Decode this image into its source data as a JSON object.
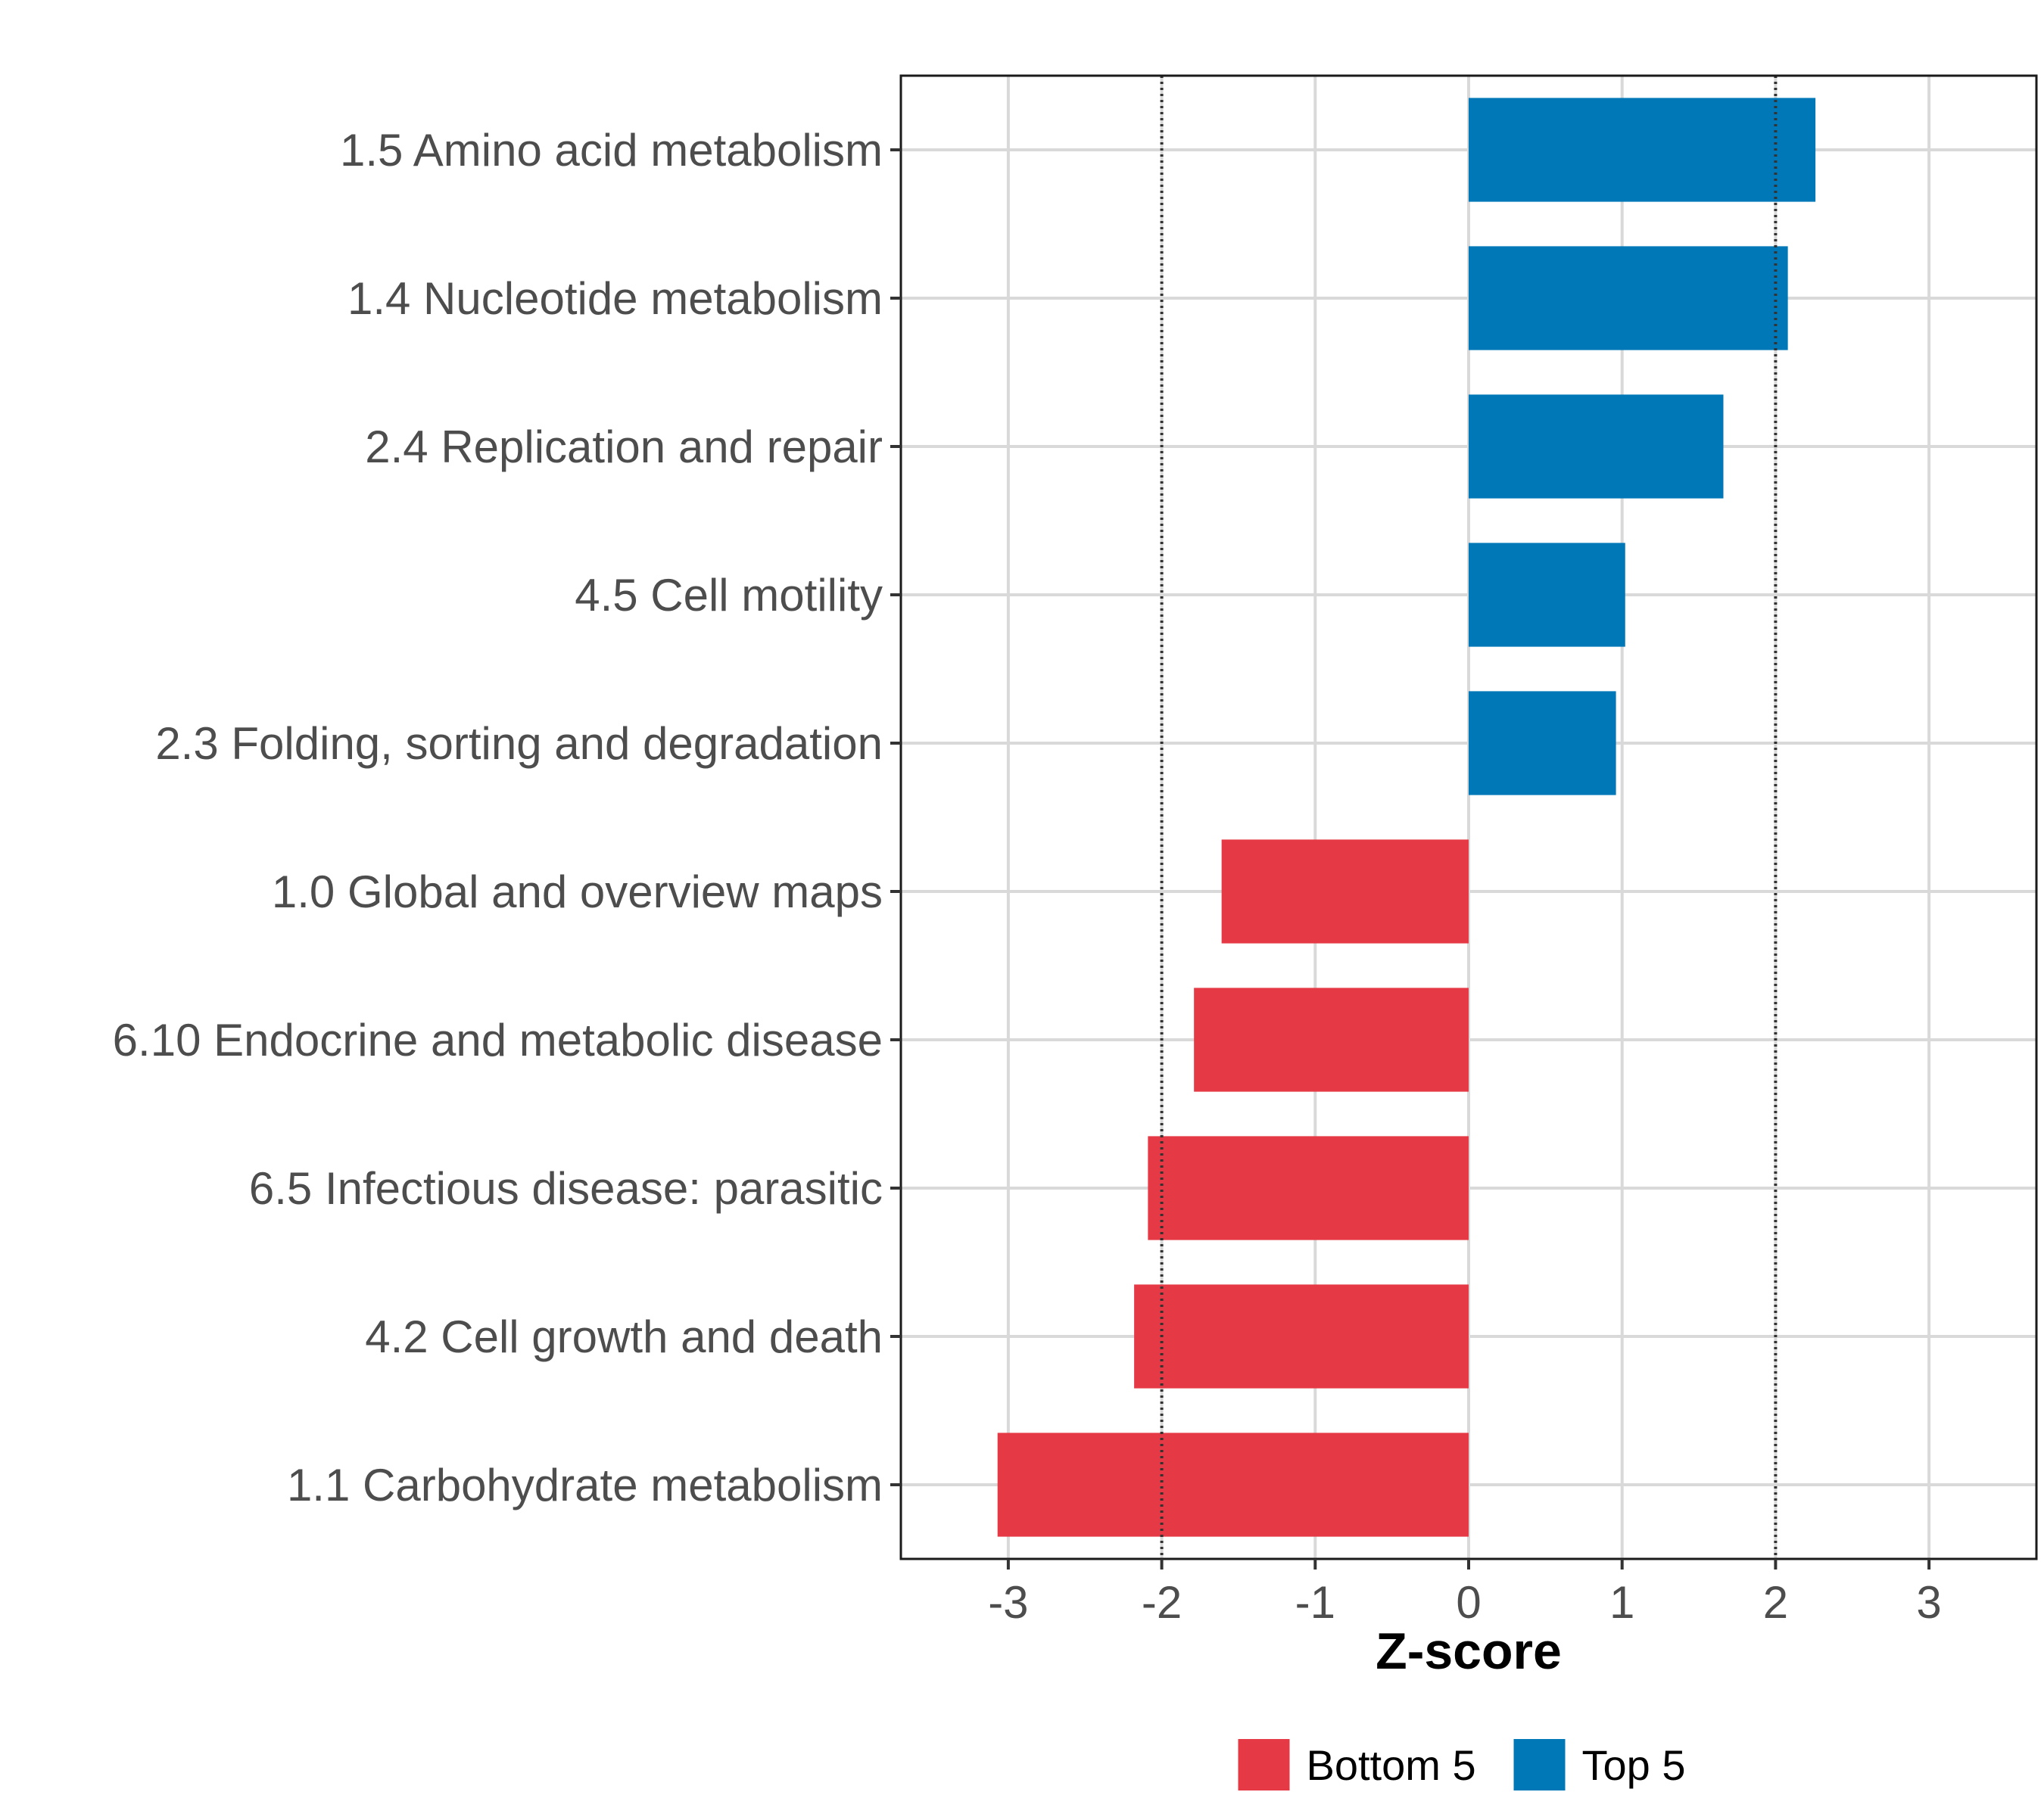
{
  "chart_data": {
    "type": "bar",
    "orientation": "horizontal",
    "title": "",
    "xlabel": "Z-score",
    "ylabel": "",
    "xlim": [
      -3.7,
      3.7
    ],
    "x_ticks": [
      -3,
      -2,
      -1,
      0,
      1,
      2,
      3
    ],
    "x_tick_labels": [
      "-3",
      "-2",
      "-1",
      "0",
      "1",
      "2",
      "3"
    ],
    "reference_lines": [
      -2,
      2
    ],
    "grid": true,
    "legend_position": "bottom",
    "categories": [
      "1.5 Amino acid metabolism",
      "1.4 Nucleotide metabolism",
      "2.4 Replication and repair",
      "4.5 Cell motility",
      "2.3 Folding, sorting and degradation",
      "1.0 Global and overview maps",
      "6.10 Endocrine and metabolic disease",
      "6.5 Infectious disease: parasitic",
      "4.2 Cell growth and death",
      "1.1 Carbohydrate metabolism"
    ],
    "values": [
      2.26,
      2.08,
      1.66,
      1.02,
      0.96,
      -1.61,
      -1.79,
      -2.09,
      -2.18,
      -3.07
    ],
    "groups": [
      "Top 5",
      "Top 5",
      "Top 5",
      "Top 5",
      "Top 5",
      "Bottom 5",
      "Bottom 5",
      "Bottom 5",
      "Bottom 5",
      "Bottom 5"
    ],
    "legend": [
      {
        "name": "Bottom 5",
        "color": "#E63946"
      },
      {
        "name": "Top 5",
        "color": "#0077B6"
      }
    ]
  }
}
